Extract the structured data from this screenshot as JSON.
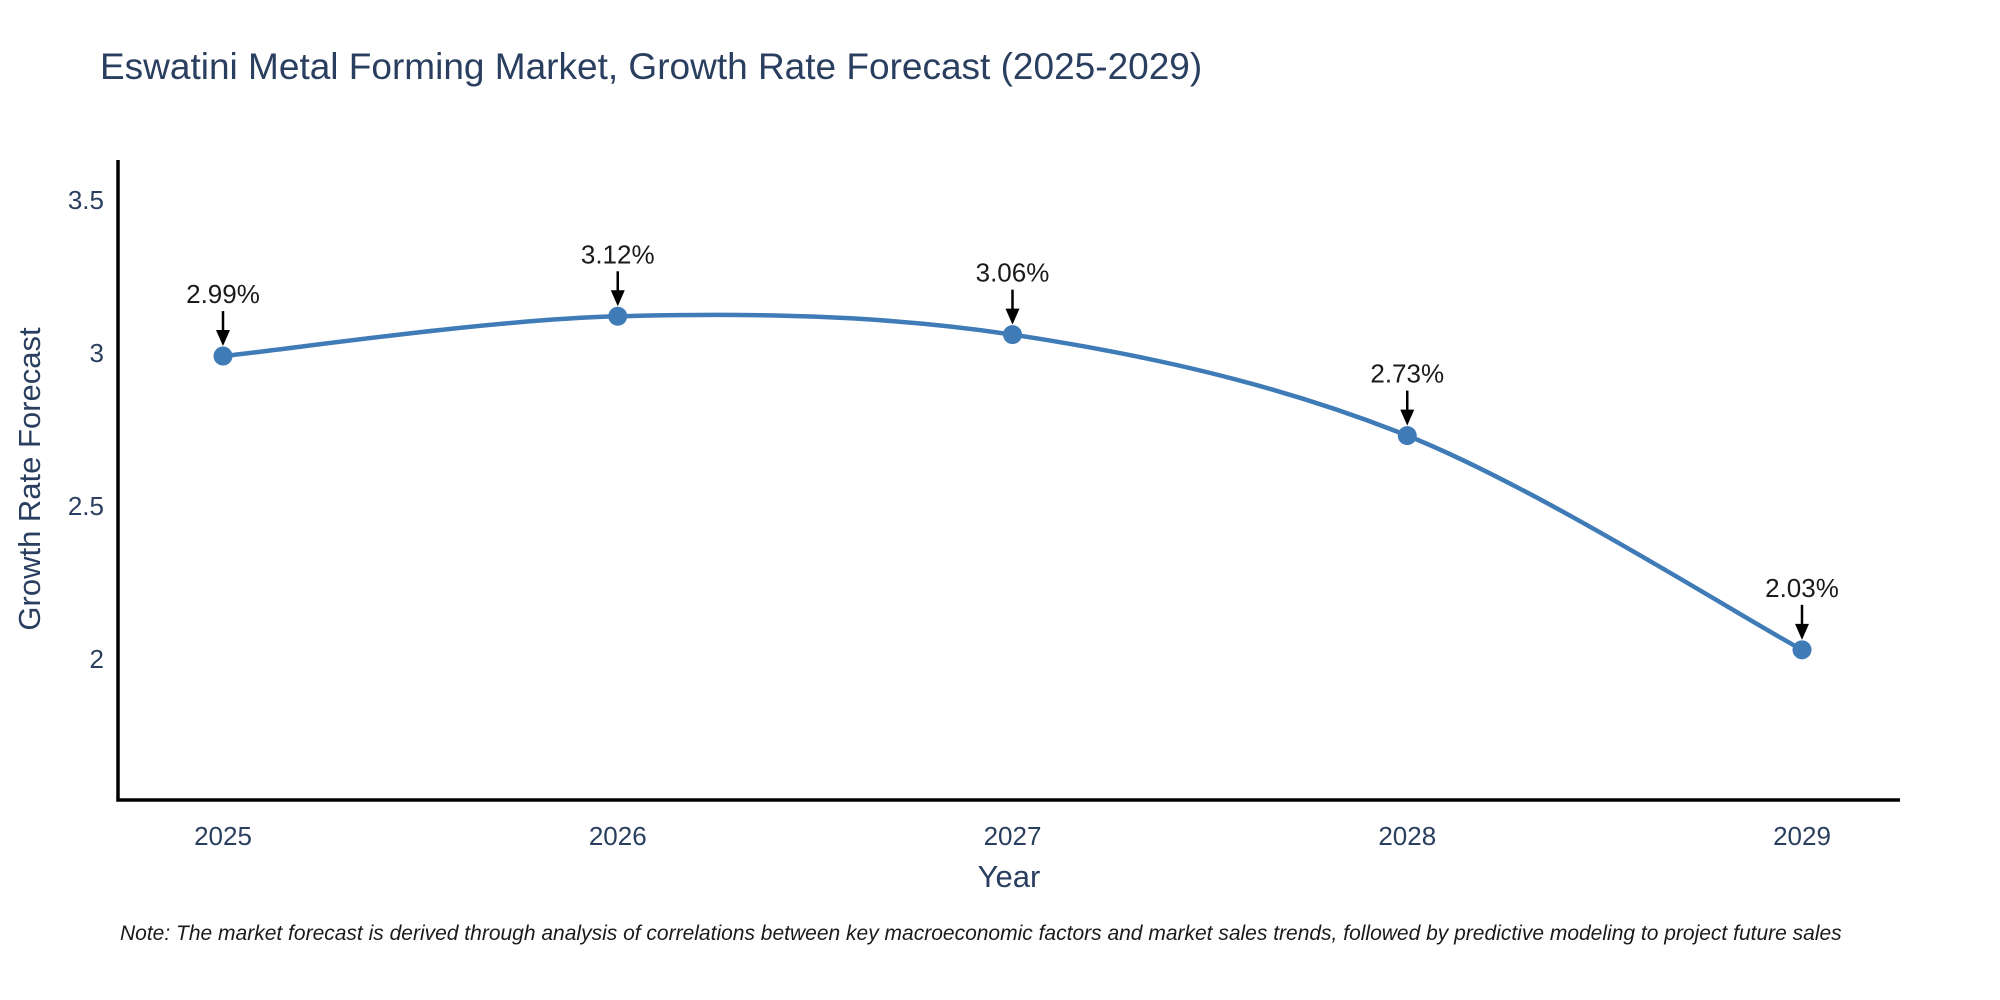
{
  "figure": {
    "title": "Eswatini Metal Forming Market, Growth Rate Forecast (2025-2029)",
    "x_axis_title": "Year",
    "y_axis_title": "Growth Rate Forecast",
    "note": "Note: The market forecast is derived through analysis of correlations between key macroeconomic factors and market sales trends, followed by predictive modeling to project future sales"
  },
  "colors": {
    "line": "#3f7bb6",
    "marker": "#3f7bb6",
    "axis_line": "#000000",
    "title_text": "#2a3f5f",
    "tick_text": "#2a3f5f",
    "annotation_text": "#1a1a1a",
    "arrow": "#000000",
    "note_text": "#1a1a1a",
    "background": "#ffffff"
  },
  "chart_data": {
    "type": "line",
    "title": "Eswatini Metal Forming Market, Growth Rate Forecast (2025-2029)",
    "xlabel": "Year",
    "ylabel": "Growth Rate Forecast",
    "x": [
      "2025",
      "2026",
      "2027",
      "2028",
      "2029"
    ],
    "values": [
      2.99,
      3.12,
      3.06,
      2.73,
      2.03
    ],
    "point_labels": [
      "2.99%",
      "3.12%",
      "3.06%",
      "2.73%",
      "2.03%"
    ],
    "yticks": [
      "3.5",
      "3",
      "2.5",
      "2"
    ],
    "ylim": [
      1.56,
      3.64
    ],
    "line_shape": "spline",
    "markers": true,
    "grid": false,
    "legend_position": "none",
    "annotations": "each point labeled with its value and a black arrow pointing down to the marker"
  }
}
